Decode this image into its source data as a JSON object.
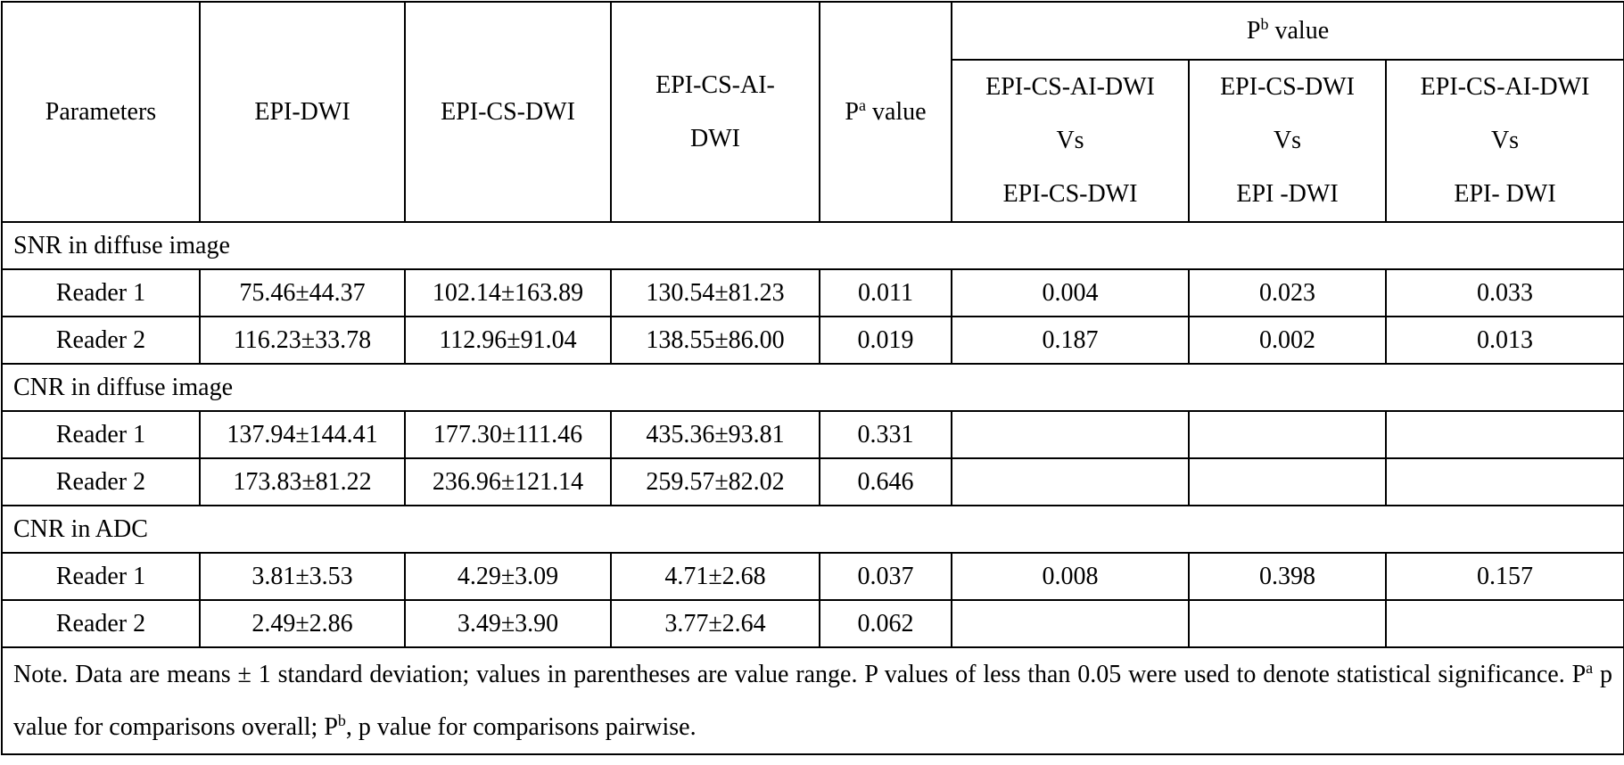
{
  "table": {
    "header": {
      "parameters": "Parameters",
      "epi_dwi": "EPI-DWI",
      "epi_cs_dwi": "EPI-CS-DWI",
      "epi_cs_ai_dwi_line1": "EPI-CS-AI-",
      "epi_cs_ai_dwi_line2": "DWI",
      "pa_value_p": "P",
      "pa_value_sup": "a",
      "pa_value_rest": " value",
      "pb_value_p": "P",
      "pb_value_sup": "b",
      "pb_value_rest": " value",
      "comparisons": [
        {
          "line1": "EPI-CS-AI-DWI",
          "line2": "Vs",
          "line3": "EPI-CS-DWI"
        },
        {
          "line1": "EPI-CS-DWI",
          "line2": "Vs",
          "line3": "EPI -DWI"
        },
        {
          "line1": "EPI-CS-AI-DWI",
          "line2": "Vs",
          "line3": "EPI- DWI"
        }
      ]
    },
    "sections": [
      {
        "title": "SNR in diffuse image",
        "rows": [
          {
            "reader": "Reader 1",
            "epi_dwi": "75.46±44.37",
            "epi_cs_dwi": "102.14±163.89",
            "epi_cs_ai_dwi": "130.54±81.23",
            "pa": "0.011",
            "pb1": "0.004",
            "pb2": "0.023",
            "pb3": "0.033"
          },
          {
            "reader": "Reader 2",
            "epi_dwi": "116.23±33.78",
            "epi_cs_dwi": "112.96±91.04",
            "epi_cs_ai_dwi": "138.55±86.00",
            "pa": "0.019",
            "pb1": "0.187",
            "pb2": "0.002",
            "pb3": "0.013"
          }
        ]
      },
      {
        "title": "CNR in diffuse image",
        "rows": [
          {
            "reader": "Reader 1",
            "epi_dwi": "137.94±144.41",
            "epi_cs_dwi": "177.30±111.46",
            "epi_cs_ai_dwi": "435.36±93.81",
            "pa": "0.331",
            "pb1": "",
            "pb2": "",
            "pb3": ""
          },
          {
            "reader": "Reader 2",
            "epi_dwi": "173.83±81.22",
            "epi_cs_dwi": "236.96±121.14",
            "epi_cs_ai_dwi": "259.57±82.02",
            "pa": "0.646",
            "pb1": "",
            "pb2": "",
            "pb3": ""
          }
        ]
      },
      {
        "title": "CNR in ADC",
        "rows": [
          {
            "reader": "Reader 1",
            "epi_dwi": "3.81±3.53",
            "epi_cs_dwi": "4.29±3.09",
            "epi_cs_ai_dwi": "4.71±2.68",
            "pa": "0.037",
            "pb1": "0.008",
            "pb2": "0.398",
            "pb3": "0.157"
          },
          {
            "reader": "Reader 2",
            "epi_dwi": "2.49±2.86",
            "epi_cs_dwi": "3.49±3.90",
            "epi_cs_ai_dwi": "3.77±2.64",
            "pa": "0.062",
            "pb1": "",
            "pb2": "",
            "pb3": ""
          }
        ]
      }
    ],
    "note": {
      "part1": "Note. Data are means ± 1 standard deviation; values in parentheses are value range. P values of less than 0.05 were used to denote statistical significance. P",
      "sup_a": "a",
      "part2": " p value for comparisons overall; P",
      "sup_b": "b",
      "part3": ", p value for comparisons pairwise."
    }
  }
}
